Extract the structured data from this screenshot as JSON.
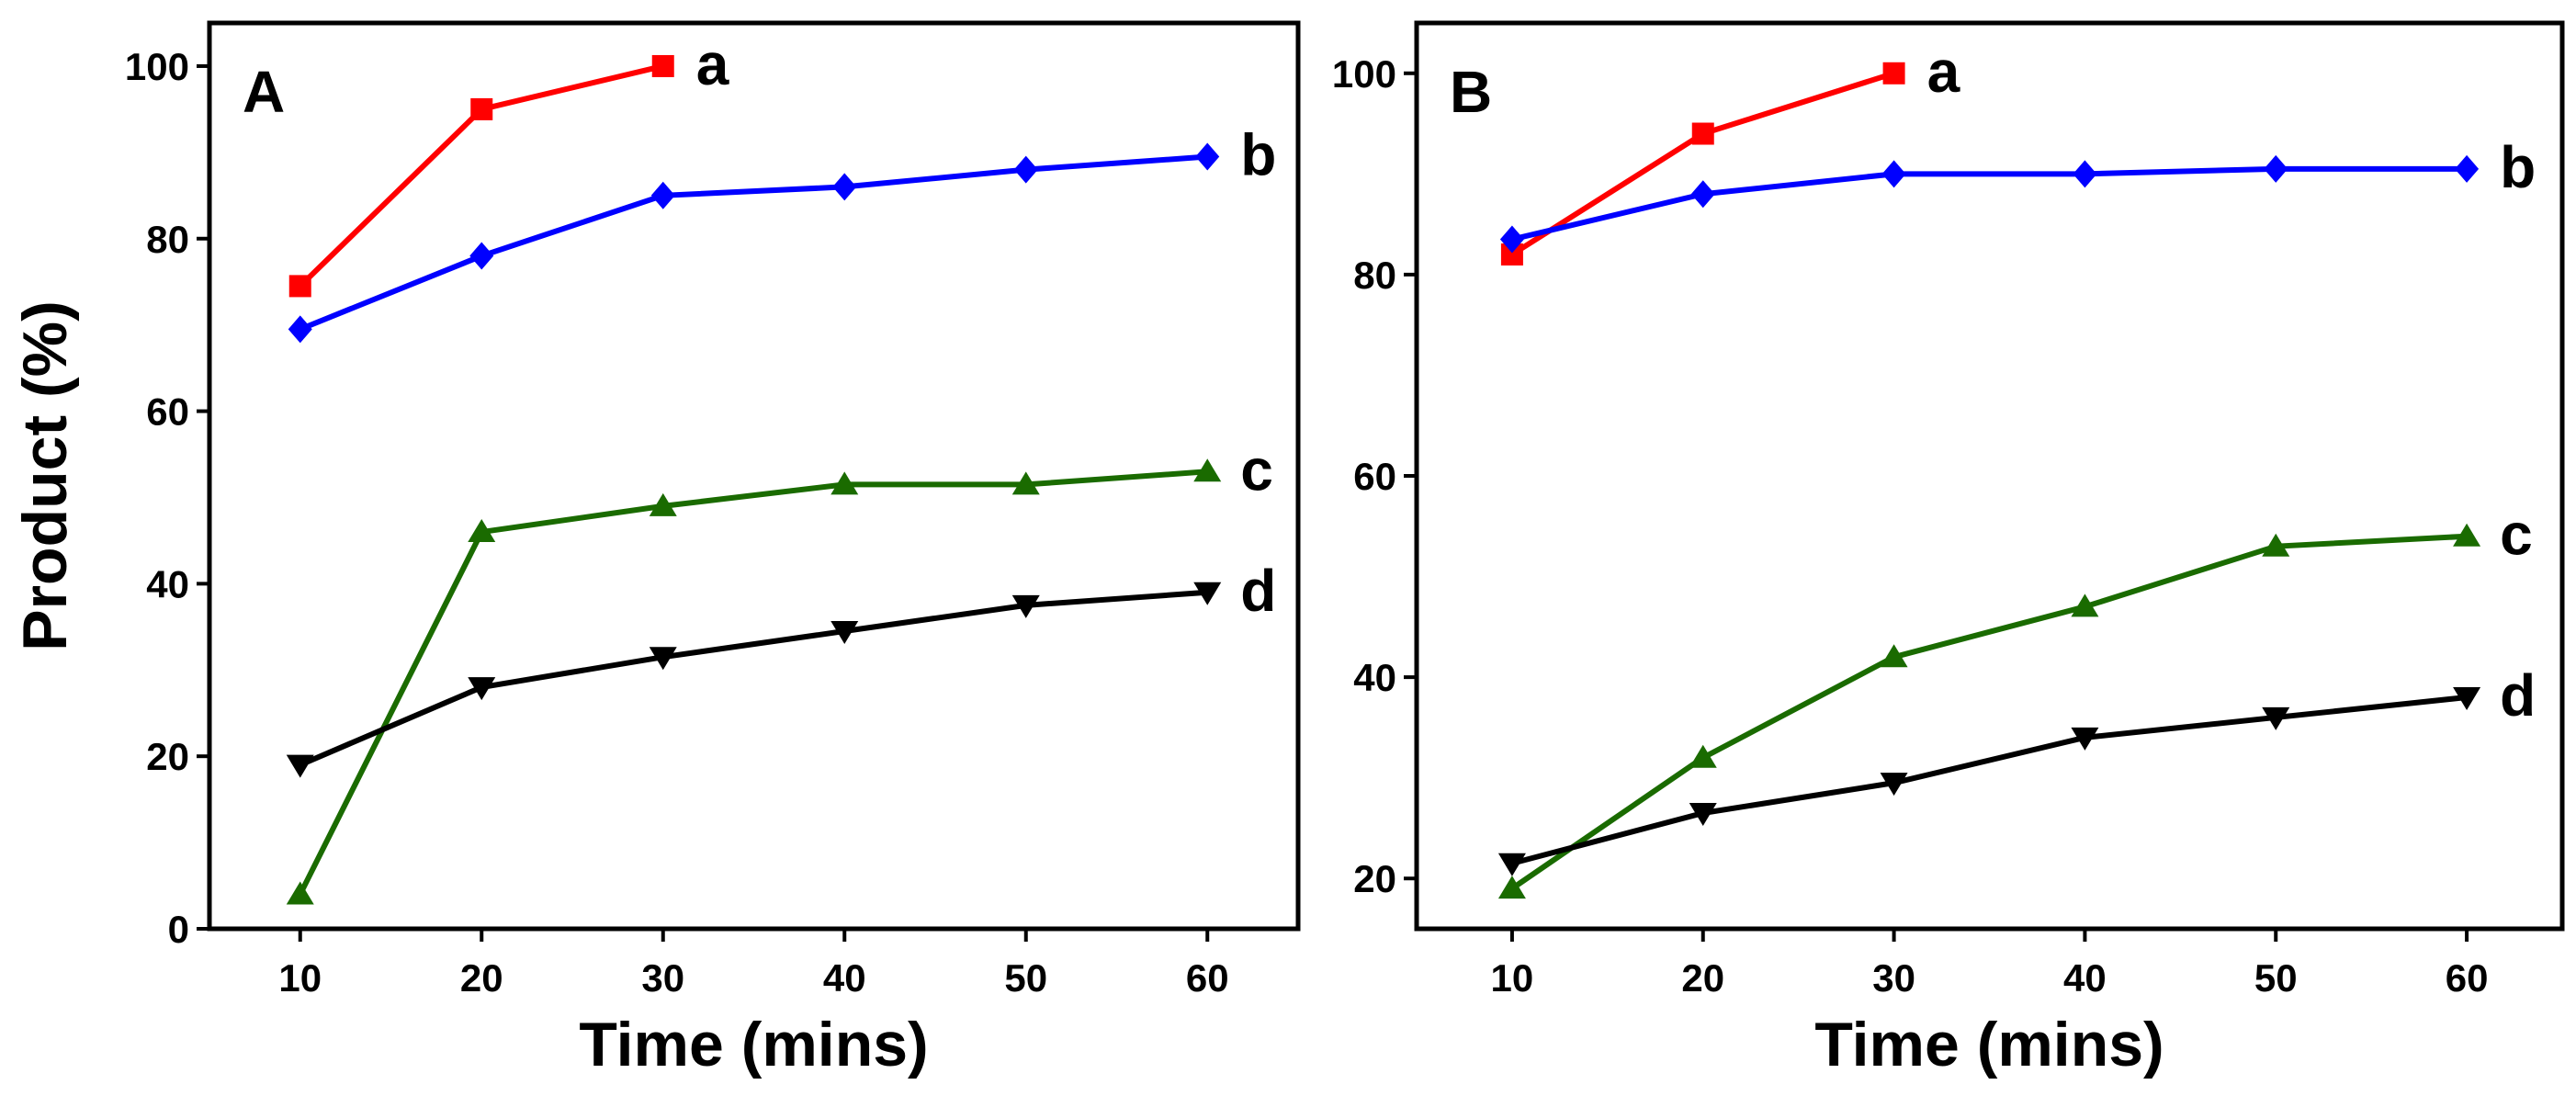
{
  "chart_data": [
    {
      "type": "line",
      "panel_label": "A",
      "xlabel": "Time (mins)",
      "ylabel": "Product (%)",
      "xlim": [
        5,
        65
      ],
      "ylim": [
        0,
        105
      ],
      "xticks": [
        10,
        20,
        30,
        40,
        50,
        60
      ],
      "yticks": [
        0,
        20,
        40,
        60,
        80,
        100
      ],
      "grid": false,
      "series": [
        {
          "name": "a",
          "color": "#ff0000",
          "marker": "square",
          "x": [
            10,
            20,
            30
          ],
          "values": [
            74.5,
            95,
            100
          ]
        },
        {
          "name": "b",
          "color": "#0000ff",
          "marker": "diamond",
          "x": [
            10,
            20,
            30,
            40,
            50,
            60
          ],
          "values": [
            69.5,
            78,
            85,
            86,
            88,
            89.5
          ]
        },
        {
          "name": "c",
          "color": "#1a6b00",
          "marker": "triangle-up",
          "x": [
            10,
            20,
            30,
            40,
            50,
            60
          ],
          "values": [
            4,
            46,
            49,
            51.5,
            51.5,
            53
          ]
        },
        {
          "name": "d",
          "color": "#000000",
          "marker": "triangle-down",
          "x": [
            10,
            20,
            30,
            40,
            50,
            60
          ],
          "values": [
            19,
            28,
            31.5,
            34.5,
            37.5,
            39
          ]
        }
      ]
    },
    {
      "type": "line",
      "panel_label": "B",
      "xlabel": "Time (mins)",
      "ylabel": "",
      "xlim": [
        5,
        65
      ],
      "ylim": [
        15,
        105
      ],
      "xticks": [
        10,
        20,
        30,
        40,
        50,
        60
      ],
      "yticks": [
        20,
        40,
        60,
        80,
        100
      ],
      "grid": false,
      "series": [
        {
          "name": "a",
          "color": "#ff0000",
          "marker": "square",
          "x": [
            10,
            20,
            30
          ],
          "values": [
            82,
            94,
            100
          ]
        },
        {
          "name": "b",
          "color": "#0000ff",
          "marker": "diamond",
          "x": [
            10,
            20,
            30,
            40,
            50,
            60
          ],
          "values": [
            83.5,
            88,
            90,
            90,
            90.5,
            90.5
          ]
        },
        {
          "name": "c",
          "color": "#1a6b00",
          "marker": "triangle-up",
          "x": [
            10,
            20,
            30,
            40,
            50,
            60
          ],
          "values": [
            19,
            32,
            42,
            47,
            53,
            54
          ]
        },
        {
          "name": "d",
          "color": "#000000",
          "marker": "triangle-down",
          "x": [
            10,
            20,
            30,
            40,
            50,
            60
          ],
          "values": [
            21.5,
            26.5,
            29.5,
            34,
            36,
            38
          ]
        }
      ]
    }
  ]
}
